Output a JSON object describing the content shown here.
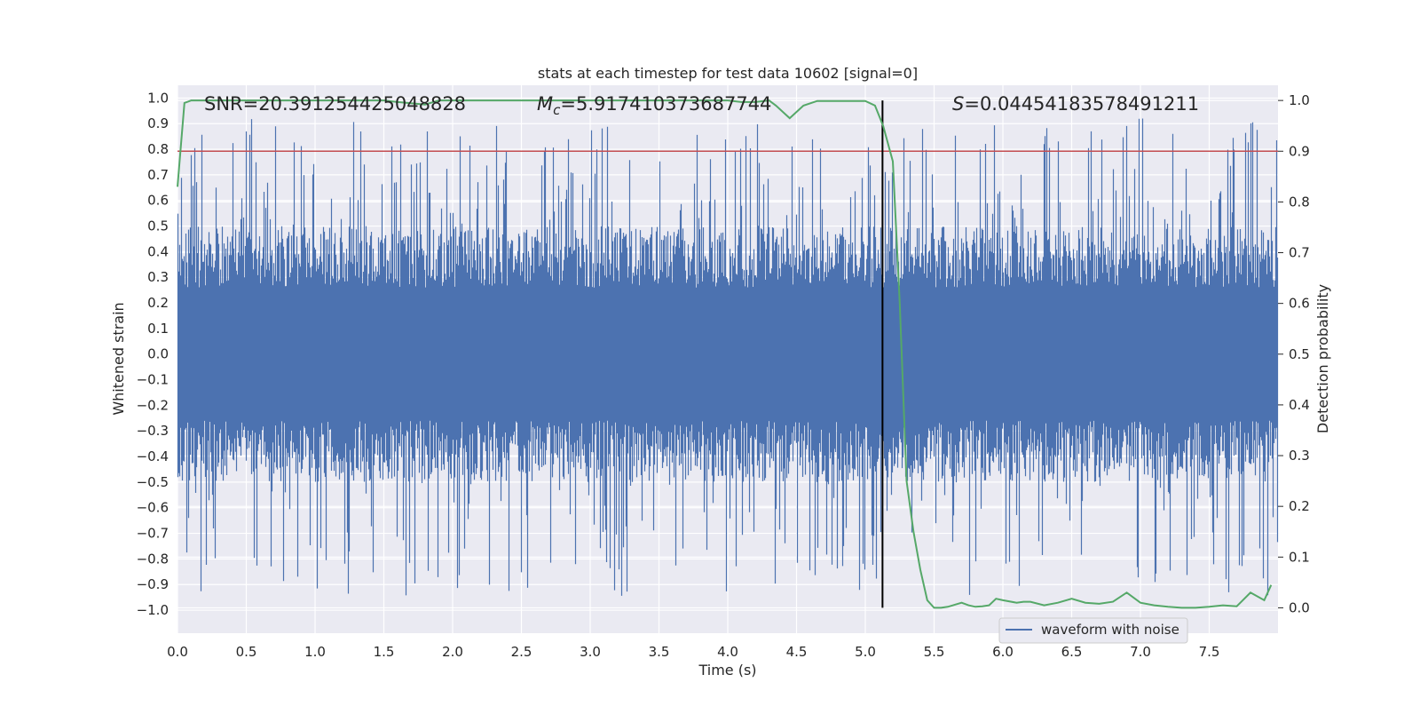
{
  "chart_data": {
    "type": "line",
    "title": "stats at each timestep for test data 10602 [signal=0]",
    "xlabel": "Time (s)",
    "ylabel_left": "Whitened strain",
    "ylabel_right": "Detection probability",
    "xlim": [
      0.0,
      8.0
    ],
    "ylim_left": [
      -1.09,
      1.05
    ],
    "ylim_right": [
      -0.05,
      1.03
    ],
    "x_ticks": [
      "0.0",
      "0.5",
      "1.0",
      "1.5",
      "2.0",
      "2.5",
      "3.0",
      "3.5",
      "4.0",
      "4.5",
      "5.0",
      "5.5",
      "6.0",
      "6.5",
      "7.0",
      "7.5"
    ],
    "y_left_ticks": [
      "1.0",
      "0.9",
      "0.8",
      "0.7",
      "0.6",
      "0.5",
      "0.4",
      "0.3",
      "0.2",
      "0.1",
      "0.0",
      "-0.1",
      "-0.2",
      "-0.3",
      "-0.4",
      "-0.5",
      "-0.6",
      "-0.7",
      "-0.8",
      "-0.9",
      "-1.0"
    ],
    "y_right_ticks": [
      "1.0",
      "0.9",
      "0.8",
      "0.7",
      "0.6",
      "0.5",
      "0.4",
      "0.3",
      "0.2",
      "0.1",
      "0.0"
    ],
    "grid": true,
    "annotations": {
      "snr": "SNR=20.391254425048828",
      "mc_symbol": "M",
      "mc_sub": "c",
      "mc_value": "=5.917410373687744",
      "s_symbol": "S",
      "s_value": "=0.04454183578491211"
    },
    "threshold_line": {
      "axis": "right",
      "y": 0.9,
      "color": "#c44e52"
    },
    "vertical_marker": {
      "x": 5.125,
      "y_range_right": [
        0.0,
        1.0
      ],
      "color": "#000000"
    },
    "series": [
      {
        "name": "waveform with noise",
        "axis": "left",
        "color": "#4c72b0",
        "sample_rate_hz": 4096,
        "duration_s": 8.0,
        "summary": {
          "approx_min": -1.0,
          "approx_max": 0.97,
          "typical_abs_amplitude": 0.4
        }
      },
      {
        "name": "detection probability",
        "axis": "right",
        "color": "#55a868",
        "x": [
          0.0,
          0.05,
          0.1,
          0.15,
          0.3,
          0.5,
          1.0,
          1.5,
          1.6,
          1.8,
          1.9,
          2.5,
          3.0,
          3.5,
          4.0,
          4.1,
          4.2,
          4.3,
          4.35,
          4.45,
          4.55,
          4.65,
          4.8,
          5.0,
          5.07,
          5.13,
          5.2,
          5.25,
          5.3,
          5.35,
          5.4,
          5.45,
          5.5,
          5.55,
          5.6,
          5.7,
          5.75,
          5.8,
          5.85,
          5.9,
          5.95,
          6.0,
          6.1,
          6.15,
          6.2,
          6.3,
          6.4,
          6.5,
          6.6,
          6.7,
          6.8,
          6.9,
          7.0,
          7.1,
          7.2,
          7.3,
          7.4,
          7.5,
          7.6,
          7.7,
          7.8,
          7.9,
          7.95
        ],
        "values": [
          0.83,
          0.995,
          1.0,
          1.0,
          1.0,
          1.0,
          1.0,
          1.0,
          0.997,
          0.992,
          1.0,
          1.0,
          1.0,
          1.0,
          1.0,
          0.997,
          0.997,
          1.0,
          0.99,
          0.965,
          0.99,
          0.999,
          0.999,
          0.999,
          0.99,
          0.95,
          0.88,
          0.6,
          0.25,
          0.15,
          0.075,
          0.015,
          0.0,
          0.0,
          0.002,
          0.01,
          0.005,
          0.002,
          0.003,
          0.005,
          0.018,
          0.015,
          0.01,
          0.012,
          0.012,
          0.005,
          0.01,
          0.018,
          0.01,
          0.008,
          0.012,
          0.03,
          0.01,
          0.005,
          0.002,
          0.0,
          0.0,
          0.002,
          0.005,
          0.003,
          0.03,
          0.015,
          0.045
        ]
      }
    ],
    "legend": {
      "location": "lower-right",
      "entries": [
        "waveform with noise"
      ]
    }
  }
}
